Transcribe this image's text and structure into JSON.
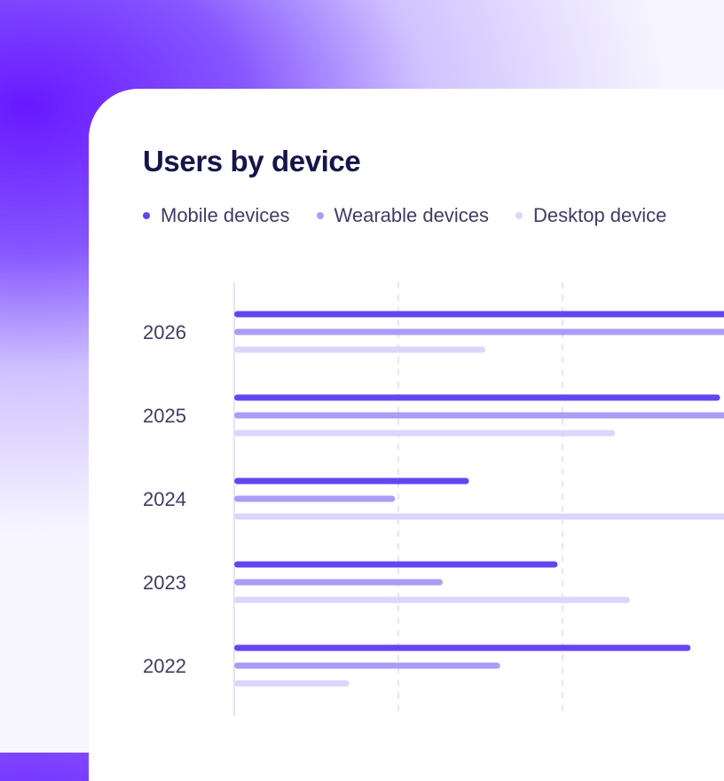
{
  "title": "Users by device",
  "legend": [
    {
      "label": "Mobile devices",
      "color": "#6445f0"
    },
    {
      "label": "Wearable devices",
      "color": "#aa9df5"
    },
    {
      "label": "Desktop device",
      "color": "#dcd6fb"
    }
  ],
  "chart_data": {
    "type": "bar",
    "orientation": "horizontal",
    "title": "Users by device",
    "categories": [
      "2026",
      "2025",
      "2024",
      "2023",
      "2022"
    ],
    "xlim": [
      0,
      300
    ],
    "grid": true,
    "legend_placement": "top-left",
    "series": [
      {
        "name": "Mobile devices",
        "color": "#6445f0",
        "values": [
          310,
          296,
          143,
          197,
          278
        ]
      },
      {
        "name": "Wearable devices",
        "color": "#aa9df5",
        "values": [
          312,
          312,
          98,
          127,
          162
        ]
      },
      {
        "name": "Desktop device",
        "color": "#dcd6fb",
        "values": [
          153,
          232,
          312,
          241,
          70
        ]
      }
    ]
  }
}
